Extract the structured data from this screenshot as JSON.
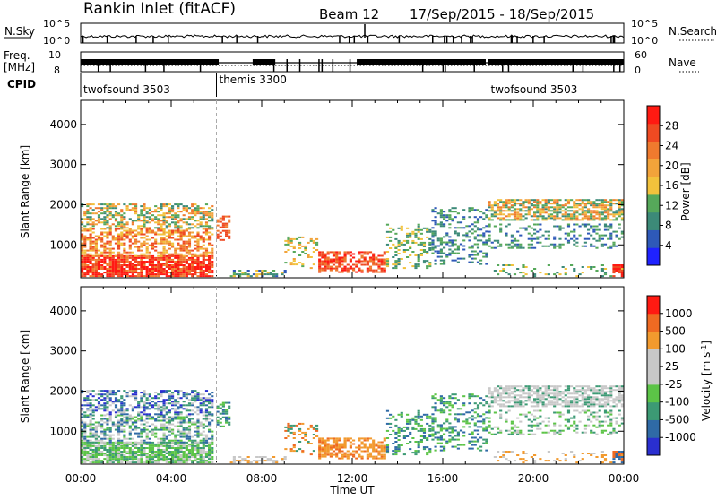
{
  "header": {
    "title": "Rankin Inlet (fitACF)",
    "beam": "Beam 12",
    "date_range": "17/Sep/2015 - 18/Sep/2015"
  },
  "top_panels": {
    "nsky_label": "N.Sky",
    "nsearch_label": "N.Search",
    "nsky_ticks": [
      "10^5",
      "10^0"
    ],
    "nsearch_ticks": [
      "10^5",
      "10^0"
    ],
    "freq_label_1": "Freq.",
    "freq_label_2": "[MHz]",
    "freq_ticks": [
      "10",
      "8"
    ],
    "nave_label": "Nave",
    "nave_ticks": [
      "60",
      "0"
    ],
    "cpid_label": "CPID"
  },
  "cpid_segments": [
    {
      "label": "twofsound 3503",
      "start_hour": 0,
      "end_hour": 6
    },
    {
      "label": "themis 3300",
      "start_hour": 6,
      "end_hour": 18
    },
    {
      "label": "twofsound 3503",
      "start_hour": 18,
      "end_hour": 24
    }
  ],
  "chart_data": [
    {
      "type": "heatmap",
      "panel": "power",
      "xlabel": "Time UT",
      "ylabel": "Slant Range [km]",
      "x_ticks": [
        "00:00",
        "04:00",
        "08:00",
        "12:00",
        "16:00",
        "20:00",
        "00:00"
      ],
      "x_range_hours": [
        0,
        24
      ],
      "ylim": [
        180,
        4600
      ],
      "y_ticks": [
        1000,
        2000,
        3000,
        4000
      ],
      "colorbar": {
        "label": "Power [dB]",
        "range": [
          0,
          32
        ],
        "ticks": [
          4,
          8,
          12,
          16,
          20,
          24,
          28
        ],
        "colors": [
          "#1f22ff",
          "#2e59b8",
          "#3c8a78",
          "#56a85a",
          "#f2c23c",
          "#f2a33a",
          "#ef7a2e",
          "#ef4a22",
          "#ff1a12"
        ]
      }
    },
    {
      "type": "heatmap",
      "panel": "velocity",
      "xlabel": "Time UT",
      "ylabel": "Slant Range [km]",
      "x_ticks": [
        "00:00",
        "04:00",
        "08:00",
        "12:00",
        "16:00",
        "20:00",
        "00:00"
      ],
      "x_range_hours": [
        0,
        24
      ],
      "ylim": [
        180,
        4600
      ],
      "y_ticks": [
        1000,
        2000,
        3000,
        4000
      ],
      "colorbar": {
        "label": "Velocity [m s^-1]",
        "ticks": [
          "1000",
          "500",
          "100",
          "25",
          "-25",
          "-100",
          "-500",
          "-1000"
        ],
        "colors": [
          "#2a2fd0",
          "#2f6aa6",
          "#3c9a74",
          "#5cc447",
          "#c8c8c8",
          "#c8c8c8",
          "#f29a2e",
          "#ef6a22",
          "#ff1a12"
        ]
      }
    }
  ]
}
